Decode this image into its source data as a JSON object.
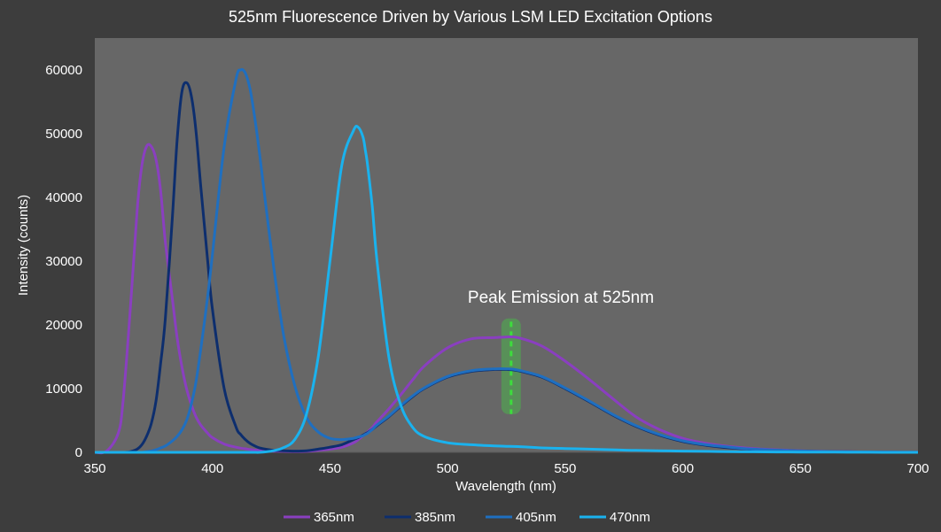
{
  "chart_data": {
    "type": "line",
    "title": "525nm Fluorescence Driven by Various LSM LED Excitation Options",
    "xlabel": "Wavelength (nm)",
    "ylabel": "Intensity (counts)",
    "xlim": [
      350,
      700
    ],
    "ylim": [
      0,
      65000
    ],
    "xticks": [
      350,
      400,
      450,
      500,
      550,
      600,
      650,
      700
    ],
    "yticks": [
      0,
      10000,
      20000,
      30000,
      40000,
      50000,
      60000
    ],
    "grid": false,
    "legend_position": "bottom",
    "annotation": {
      "text": "Peak Emission at 525nm",
      "x": 525,
      "marker_color": "#3ddc3d"
    },
    "x": [
      350,
      355,
      360,
      362,
      365,
      368,
      370,
      372,
      374,
      376,
      378,
      380,
      383,
      385,
      387,
      389,
      391,
      393,
      395,
      398,
      400,
      405,
      410,
      412,
      414,
      416,
      418,
      420,
      425,
      430,
      435,
      440,
      445,
      450,
      455,
      460,
      462,
      464,
      465,
      466,
      468,
      470,
      475,
      480,
      485,
      490,
      500,
      510,
      520,
      525,
      530,
      540,
      550,
      560,
      570,
      580,
      590,
      600,
      610,
      620,
      630,
      640,
      650,
      660,
      670,
      680,
      690,
      700
    ],
    "series": [
      {
        "name": "365nm",
        "color": "#8a3fc0",
        "values": [
          0,
          200,
          3000,
          8000,
          22000,
          38000,
          45000,
          48000,
          48000,
          46000,
          41000,
          33000,
          24000,
          18000,
          13500,
          10000,
          7500,
          5600,
          4300,
          3000,
          2300,
          1300,
          800,
          650,
          550,
          450,
          350,
          300,
          200,
          150,
          120,
          150,
          300,
          500,
          800,
          1500,
          2000,
          2600,
          2900,
          3200,
          3900,
          4800,
          6800,
          9000,
          11300,
          13500,
          16400,
          17800,
          18000,
          18100,
          18000,
          16700,
          14300,
          11500,
          8500,
          5600,
          3600,
          2200,
          1400,
          900,
          600,
          400,
          250,
          150,
          100,
          60,
          30,
          10
        ]
      },
      {
        "name": "385nm",
        "color": "#0d2e6e",
        "values": [
          0,
          0,
          0,
          0,
          100,
          500,
          1200,
          2500,
          4500,
          8000,
          14000,
          21000,
          37000,
          49000,
          56500,
          58000,
          56000,
          50500,
          42000,
          30000,
          22500,
          10000,
          4000,
          2800,
          2000,
          1400,
          1000,
          700,
          350,
          250,
          200,
          250,
          500,
          800,
          1200,
          2000,
          2300,
          2700,
          2900,
          3100,
          3600,
          4200,
          5600,
          7200,
          8700,
          10000,
          11800,
          12700,
          13000,
          13000,
          12800,
          11800,
          10000,
          8000,
          5900,
          4100,
          2700,
          1700,
          1100,
          700,
          450,
          300,
          200,
          120,
          80,
          50,
          30,
          10
        ]
      },
      {
        "name": "405nm",
        "color": "#1f6fc0",
        "values": [
          0,
          0,
          0,
          0,
          0,
          0,
          0,
          100,
          200,
          400,
          700,
          1000,
          1800,
          2500,
          3500,
          5000,
          7500,
          11000,
          16000,
          24500,
          31000,
          48000,
          58500,
          60000,
          59500,
          57000,
          52500,
          47000,
          32000,
          19000,
          10500,
          5500,
          3200,
          2200,
          2000,
          2200,
          2400,
          2600,
          2800,
          3000,
          3600,
          4300,
          5700,
          7300,
          8800,
          10100,
          11900,
          12800,
          13100,
          13100,
          12900,
          11900,
          10100,
          8100,
          6000,
          4200,
          2800,
          1800,
          1200,
          800,
          500,
          350,
          220,
          140,
          90,
          55,
          30,
          10
        ]
      },
      {
        "name": "470nm",
        "color": "#1ab2ee",
        "values": [
          0,
          0,
          0,
          0,
          0,
          0,
          0,
          0,
          0,
          0,
          0,
          0,
          0,
          0,
          0,
          0,
          0,
          0,
          0,
          0,
          0,
          0,
          0,
          0,
          0,
          0,
          0,
          0,
          200,
          700,
          2000,
          6000,
          15000,
          30000,
          45000,
          50500,
          51000,
          49500,
          47500,
          45000,
          38500,
          30000,
          15000,
          7500,
          4000,
          2500,
          1500,
          1200,
          1000,
          950,
          900,
          700,
          600,
          500,
          400,
          300,
          250,
          200,
          150,
          100,
          80,
          60,
          40,
          30,
          20,
          10,
          5,
          0
        ]
      }
    ]
  }
}
